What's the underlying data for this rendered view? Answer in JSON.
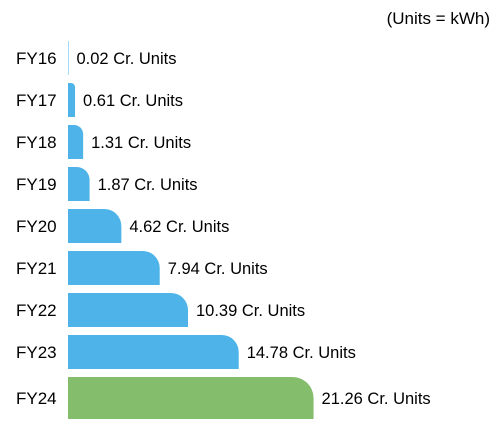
{
  "chart_data": {
    "type": "bar",
    "orientation": "horizontal",
    "unit_note": "(Units = kWh)",
    "categories": [
      "FY16",
      "FY17",
      "FY18",
      "FY19",
      "FY20",
      "FY21",
      "FY22",
      "FY23",
      "FY24"
    ],
    "values": [
      0.02,
      0.61,
      1.31,
      1.87,
      4.62,
      7.94,
      10.39,
      14.78,
      21.26
    ],
    "value_labels": [
      "0.02 Cr. Units",
      "0.61 Cr. Units",
      "1.31 Cr. Units",
      "1.87 Cr. Units",
      "4.62 Cr. Units",
      "7.94 Cr. Units",
      "10.39 Cr. Units",
      "14.78 Cr. Units",
      "21.26 Cr. Units"
    ],
    "colors": {
      "default": "#4db3e9",
      "highlight": "#84bd6c"
    },
    "highlight_index": 8,
    "grid": false,
    "legend": "none"
  }
}
